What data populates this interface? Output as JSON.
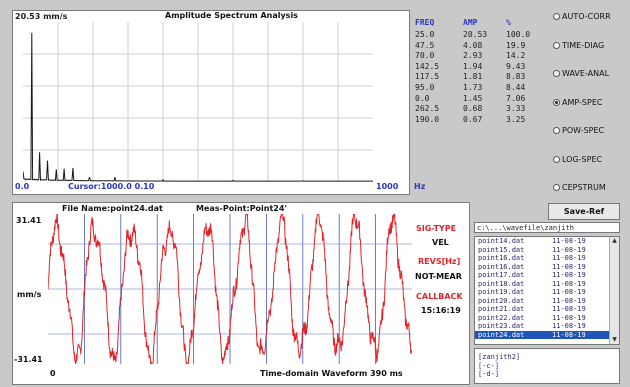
{
  "spectrum": {
    "peak_label": "20.53 mm/s",
    "title": "Amplitude Spectrum Analysis",
    "x_start": "0.0",
    "cursor": "Cursor:1000.0  0.10",
    "x_end": "1000",
    "x_unit": "Hz"
  },
  "peaks": {
    "headers": [
      "FREQ",
      "AMP",
      "%"
    ],
    "rows": [
      [
        "25.0",
        "20.53",
        "100.0"
      ],
      [
        "47.5",
        "4.08",
        "19.9"
      ],
      [
        "70.0",
        "2.93",
        "14.2"
      ],
      [
        "142.5",
        "1.94",
        "9.43"
      ],
      [
        "117.5",
        "1.81",
        "8.83"
      ],
      [
        "95.0",
        "1.73",
        "8.44"
      ],
      [
        "0.0",
        "1.45",
        "7.06"
      ],
      [
        "262.5",
        "0.68",
        "3.33"
      ],
      [
        "190.0",
        "0.67",
        "3.25"
      ]
    ]
  },
  "modes": [
    {
      "label": "AUTO-CORR",
      "selected": false
    },
    {
      "label": "TIME-DIAG",
      "selected": false
    },
    {
      "label": "WAVE-ANAL",
      "selected": false
    },
    {
      "label": "AMP-SPEC",
      "selected": true
    },
    {
      "label": "POW-SPEC",
      "selected": false
    },
    {
      "label": "LOG-SPEC",
      "selected": false
    },
    {
      "label": "CEPSTRUM",
      "selected": false
    }
  ],
  "waveform": {
    "file_name": "File Name:point24.dat",
    "meas_point": "Meas-Point:Point24'",
    "y_max": "31.41",
    "y_min": "-31.41",
    "y_unit": "mm/s",
    "x_start": "0",
    "x_caption": "Time-domain Waveform  390   ms"
  },
  "info": {
    "sig_type_label": "SIG-TYPE",
    "sig_type_value": "VEL",
    "revs_label": "REVS[Hz]",
    "revs_value": "NOT-MEAR",
    "callback_label": "CALLBACK",
    "callback_value": "15:16:19"
  },
  "save_button": "Save-Ref",
  "path_field": "c:\\...\\wavefile\\zanjith",
  "files": [
    {
      "name": "point14.dat",
      "date": "11-08-19"
    },
    {
      "name": "point15.dat",
      "date": "11-08-19"
    },
    {
      "name": "point16.dat",
      "date": "11-08-19"
    },
    {
      "name": "point16.dat",
      "date": "11-08-19"
    },
    {
      "name": "point17.dat",
      "date": "11-08-19"
    },
    {
      "name": "point18.dat",
      "date": "11-08-19"
    },
    {
      "name": "point19.dat",
      "date": "11-08-19"
    },
    {
      "name": "point20.dat",
      "date": "11-08-19"
    },
    {
      "name": "point21.dat",
      "date": "11-08-19"
    },
    {
      "name": "point22.dat",
      "date": "11-08-19"
    },
    {
      "name": "point23.dat",
      "date": "11-08-19"
    },
    {
      "name": "point24.dat",
      "date": "11-08-19",
      "selected": true
    }
  ],
  "folders": [
    "[zanjith2]",
    "[-c-]",
    "[-d-]"
  ],
  "colors": {
    "spectrum_line": "#1a1a1a",
    "waveform_line": "#e0242a",
    "grid_line": "#a8b6d8",
    "accent_blue": "#2a35c8",
    "accent_red": "#e0242a"
  },
  "chart_data": [
    {
      "type": "line",
      "title": "Amplitude Spectrum Analysis",
      "xlabel": "Hz",
      "ylabel": "mm/s",
      "xlim": [
        0,
        1000
      ],
      "ylim": [
        0,
        22
      ],
      "grid": true,
      "x": [
        0,
        25,
        47.5,
        70,
        95,
        117.5,
        142.5,
        190,
        262.5,
        400,
        600,
        800,
        1000
      ],
      "y": [
        1.45,
        20.53,
        4.08,
        2.93,
        1.73,
        1.81,
        1.94,
        0.67,
        0.68,
        0.3,
        0.2,
        0.15,
        0.1
      ]
    },
    {
      "type": "line",
      "title": "Time-domain Waveform",
      "xlabel": "ms",
      "ylabel": "mm/s",
      "xlim": [
        0,
        390
      ],
      "ylim": [
        -31.41,
        31.41
      ],
      "grid": true,
      "cycles": 9.75,
      "amplitude": 27
    }
  ]
}
